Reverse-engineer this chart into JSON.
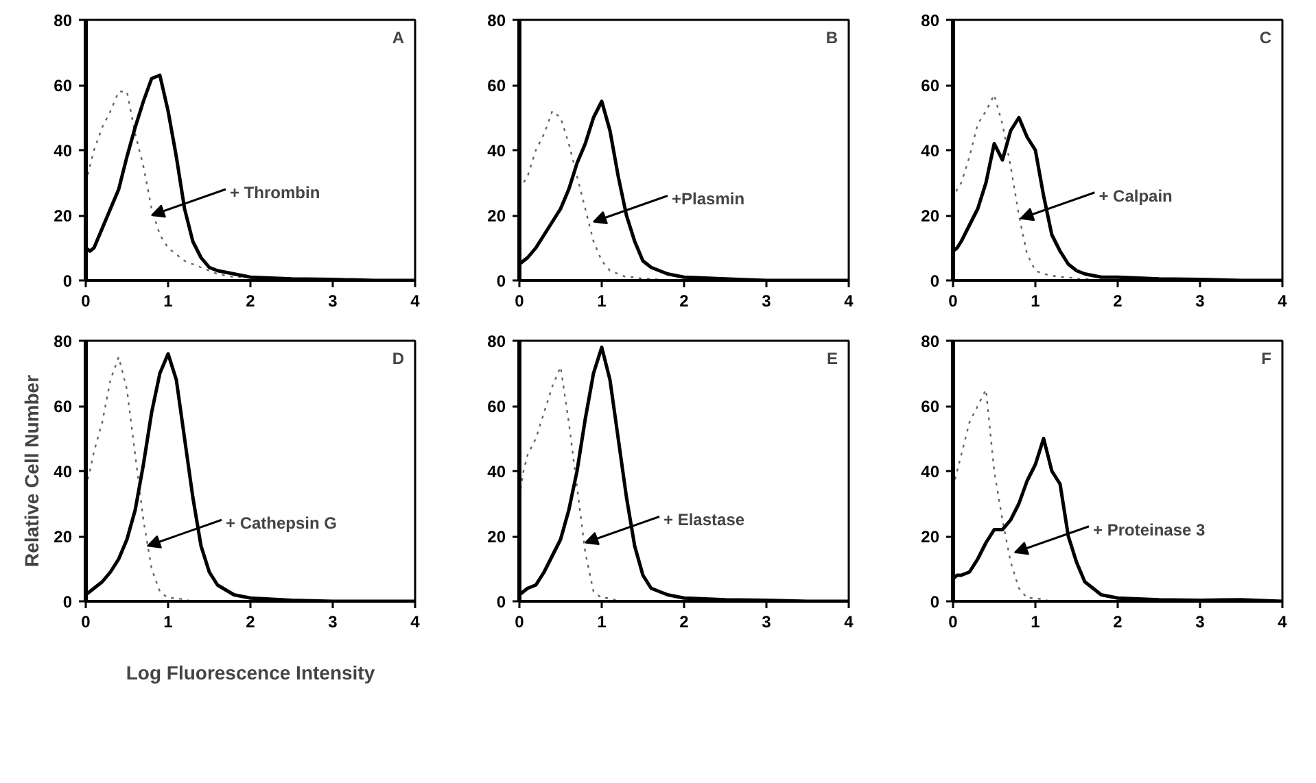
{
  "chart_data": [
    {
      "type": "line",
      "x": [
        0,
        0.05,
        0.1,
        0.2,
        0.3,
        0.4,
        0.5,
        0.6,
        0.7,
        0.8,
        0.9,
        1.0,
        1.1,
        1.2,
        1.3,
        1.4,
        1.5,
        1.6,
        1.8,
        2.0,
        2.5,
        3.0,
        3.5,
        4.0
      ],
      "xlim": [
        0,
        4
      ],
      "ylim": [
        0,
        80
      ],
      "xticks": [
        0,
        1,
        2,
        3,
        4
      ],
      "yticks": [
        0,
        20,
        40,
        60,
        80
      ],
      "annotations": [
        "A",
        {
          "text": "+ Thrombin",
          "x": 0.8,
          "y": 20
        }
      ],
      "series": [
        {
          "color": "#666666",
          "line_style": "dotted",
          "values": [
            30,
            35,
            40,
            47,
            52,
            58,
            58,
            45,
            35,
            22,
            14,
            10,
            8,
            6,
            5,
            4,
            3,
            2,
            1,
            1,
            0.5,
            0.3,
            0.2,
            0
          ]
        },
        {
          "color": "#000000",
          "line_style": "solid",
          "values": [
            10,
            9,
            10,
            16,
            22,
            28,
            38,
            47,
            55,
            62,
            63,
            52,
            38,
            22,
            12,
            7,
            4,
            3,
            2,
            1,
            0.5,
            0.3,
            0,
            0
          ]
        }
      ]
    },
    {
      "type": "line",
      "x": [
        0,
        0.05,
        0.1,
        0.2,
        0.3,
        0.4,
        0.5,
        0.6,
        0.7,
        0.8,
        0.9,
        1.0,
        1.1,
        1.2,
        1.3,
        1.4,
        1.5,
        1.6,
        1.8,
        2.0,
        2.5,
        3.0,
        3.5,
        4.0
      ],
      "xlim": [
        0,
        4
      ],
      "ylim": [
        0,
        80
      ],
      "xticks": [
        0,
        1,
        2,
        3,
        4
      ],
      "yticks": [
        0,
        20,
        40,
        60,
        80
      ],
      "annotations": [
        "B",
        {
          "text": "+Plasmin",
          "x": 0.9,
          "y": 18
        }
      ],
      "series": [
        {
          "color": "#666666",
          "line_style": "dotted",
          "values": [
            28,
            30,
            32,
            40,
            45,
            52,
            50,
            42,
            32,
            22,
            12,
            6,
            3,
            2,
            1,
            1,
            0.5,
            0.5,
            0,
            0,
            0,
            0,
            0,
            0
          ]
        },
        {
          "color": "#000000",
          "line_style": "solid",
          "values": [
            5,
            6,
            7,
            10,
            14,
            18,
            22,
            28,
            36,
            42,
            50,
            55,
            46,
            32,
            20,
            12,
            6,
            4,
            2,
            1,
            0.5,
            0,
            0,
            0
          ]
        }
      ]
    },
    {
      "type": "line",
      "x": [
        0,
        0.05,
        0.1,
        0.2,
        0.3,
        0.4,
        0.5,
        0.6,
        0.7,
        0.8,
        0.9,
        1.0,
        1.1,
        1.2,
        1.3,
        1.4,
        1.5,
        1.6,
        1.8,
        2.0,
        2.5,
        3.0,
        3.5,
        4.0
      ],
      "xlim": [
        0,
        4
      ],
      "ylim": [
        0,
        80
      ],
      "xticks": [
        0,
        1,
        2,
        3,
        4
      ],
      "yticks": [
        0,
        20,
        40,
        60,
        80
      ],
      "annotations": [
        "C",
        {
          "text": "+ Calpain",
          "x": 0.82,
          "y": 19
        }
      ],
      "series": [
        {
          "color": "#666666",
          "line_style": "dotted",
          "values": [
            25,
            28,
            30,
            38,
            48,
            52,
            57,
            48,
            35,
            20,
            8,
            3,
            2,
            1.5,
            1,
            1,
            0.5,
            0.5,
            0,
            0,
            0,
            0,
            0,
            0
          ]
        },
        {
          "color": "#000000",
          "line_style": "solid",
          "values": [
            9,
            10,
            12,
            17,
            22,
            30,
            42,
            37,
            46,
            50,
            44,
            40,
            26,
            14,
            9,
            5,
            3,
            2,
            1,
            1,
            0.5,
            0.3,
            0,
            0
          ]
        }
      ]
    },
    {
      "type": "line",
      "xlabel": "Log Fluorescence Intensity",
      "ylabel": "Relative Cell Number",
      "x": [
        0,
        0.05,
        0.1,
        0.2,
        0.3,
        0.4,
        0.5,
        0.6,
        0.7,
        0.8,
        0.9,
        1.0,
        1.1,
        1.2,
        1.3,
        1.4,
        1.5,
        1.6,
        1.8,
        2.0,
        2.5,
        3.0,
        3.5,
        4.0
      ],
      "xlim": [
        0,
        4
      ],
      "ylim": [
        0,
        80
      ],
      "xticks": [
        0,
        1,
        2,
        3,
        4
      ],
      "yticks": [
        0,
        20,
        40,
        60,
        80
      ],
      "annotations": [
        "D",
        {
          "text": "+ Cathepsin G",
          "x": 0.75,
          "y": 17
        }
      ],
      "series": [
        {
          "color": "#666666",
          "line_style": "dotted",
          "values": [
            35,
            40,
            46,
            55,
            68,
            75,
            65,
            45,
            25,
            10,
            3,
            1,
            1,
            0.5,
            0,
            0,
            0,
            0,
            0,
            0,
            0,
            0,
            0,
            0
          ]
        },
        {
          "color": "#000000",
          "line_style": "solid",
          "values": [
            2,
            3,
            4,
            6,
            9,
            13,
            19,
            28,
            42,
            58,
            70,
            76,
            68,
            50,
            32,
            17,
            9,
            5,
            2,
            1,
            0.3,
            0,
            0,
            0
          ]
        }
      ]
    },
    {
      "type": "line",
      "x": [
        0,
        0.05,
        0.1,
        0.2,
        0.3,
        0.4,
        0.5,
        0.6,
        0.7,
        0.8,
        0.9,
        1.0,
        1.1,
        1.2,
        1.3,
        1.4,
        1.5,
        1.6,
        1.8,
        2.0,
        2.5,
        3.0,
        3.5,
        4.0
      ],
      "xlim": [
        0,
        4
      ],
      "ylim": [
        0,
        80
      ],
      "xticks": [
        0,
        1,
        2,
        3,
        4
      ],
      "yticks": [
        0,
        20,
        40,
        60,
        80
      ],
      "annotations": [
        "E",
        {
          "text": "+ Elastase",
          "x": 0.8,
          "y": 18
        }
      ],
      "series": [
        {
          "color": "#666666",
          "line_style": "dotted",
          "values": [
            32,
            40,
            45,
            50,
            58,
            66,
            72,
            55,
            35,
            15,
            3,
            1,
            1,
            0,
            0,
            0,
            0,
            0,
            0,
            0,
            0,
            0,
            0,
            0
          ]
        },
        {
          "color": "#000000",
          "line_style": "solid",
          "values": [
            2,
            3,
            4,
            5,
            9,
            14,
            19,
            28,
            40,
            56,
            70,
            78,
            68,
            50,
            32,
            17,
            8,
            4,
            2,
            1,
            0.5,
            0.3,
            0,
            0
          ]
        }
      ]
    },
    {
      "type": "line",
      "x": [
        0,
        0.05,
        0.1,
        0.2,
        0.3,
        0.4,
        0.5,
        0.6,
        0.7,
        0.8,
        0.9,
        1.0,
        1.1,
        1.2,
        1.3,
        1.4,
        1.5,
        1.6,
        1.8,
        2.0,
        2.5,
        3.0,
        3.5,
        4.0
      ],
      "xlim": [
        0,
        4
      ],
      "ylim": [
        0,
        80
      ],
      "xticks": [
        0,
        1,
        2,
        3,
        4
      ],
      "yticks": [
        0,
        20,
        40,
        60,
        80
      ],
      "annotations": [
        "F",
        {
          "text": "+ Proteinase 3",
          "x": 0.75,
          "y": 15
        }
      ],
      "series": [
        {
          "color": "#666666",
          "line_style": "dotted",
          "values": [
            35,
            40,
            45,
            55,
            60,
            65,
            40,
            25,
            12,
            4,
            1,
            1,
            0.5,
            0,
            0,
            0,
            0,
            0,
            0,
            0,
            0,
            0,
            0,
            0
          ]
        },
        {
          "color": "#000000",
          "line_style": "solid",
          "values": [
            7,
            8,
            8,
            9,
            13,
            18,
            22,
            22,
            25,
            30,
            37,
            42,
            50,
            40,
            36,
            20,
            12,
            6,
            2,
            1,
            0.5,
            0.3,
            0.5,
            0
          ]
        }
      ]
    }
  ]
}
